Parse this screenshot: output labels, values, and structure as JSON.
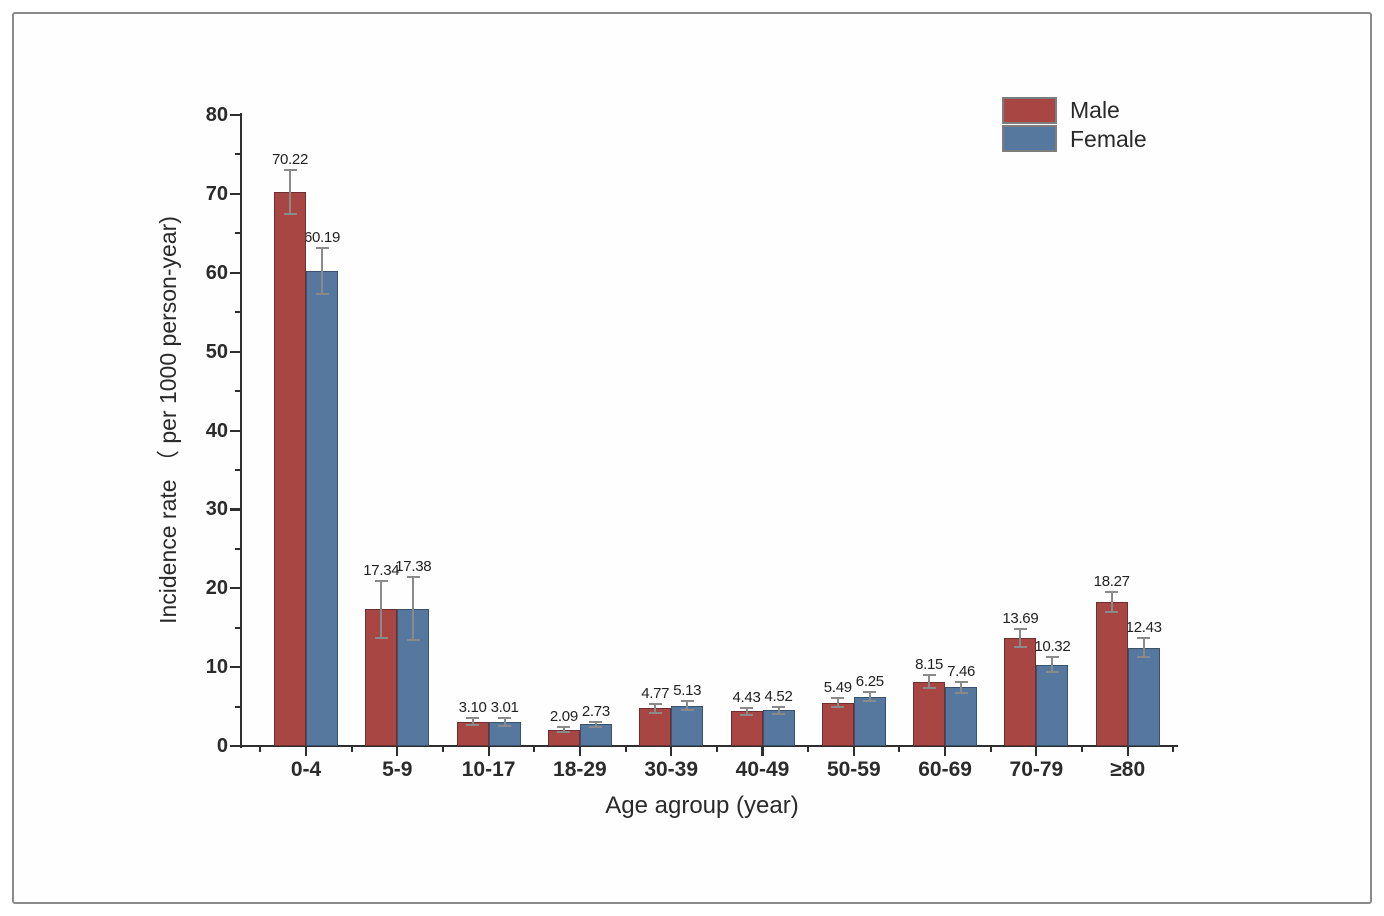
{
  "figure": {
    "background": "#ffffff",
    "frame_border_color": "#8a8a8a",
    "text_color": "#2a2a2a",
    "axis_color": "#2e2e2e",
    "error_bar_color": "#8a8a8a"
  },
  "chart_data": {
    "type": "bar",
    "title": "",
    "xlabel": "Age agroup (year)",
    "ylabel": "Incidence rate （ per 1000 person-year)",
    "categories": [
      "0-4",
      "5-9",
      "10-17",
      "18-29",
      "30-39",
      "40-49",
      "50-59",
      "60-69",
      "70-79",
      "≥80"
    ],
    "series": [
      {
        "name": "Male",
        "color": "#a84643",
        "edge_color": "#6e2f2e",
        "values": [
          70.22,
          17.34,
          3.1,
          2.09,
          4.77,
          4.43,
          5.49,
          8.15,
          13.69,
          18.27
        ],
        "labels": [
          "70.22",
          "17.34",
          "3.10",
          "2.09",
          "4.77",
          "4.43",
          "5.49",
          "8.15",
          "13.69",
          "18.27"
        ],
        "errors": [
          2.8,
          3.6,
          0.5,
          0.35,
          0.6,
          0.45,
          0.55,
          0.8,
          1.1,
          1.3
        ]
      },
      {
        "name": "Female",
        "color": "#56789f",
        "edge_color": "#39536f",
        "values": [
          60.19,
          17.38,
          3.01,
          2.73,
          5.13,
          4.52,
          6.25,
          7.46,
          10.32,
          12.43
        ],
        "labels": [
          "60.19",
          "17.38",
          "3.01",
          "2.73",
          "5.13",
          "4.52",
          "6.25",
          "7.46",
          "10.32",
          "12.43"
        ],
        "errors": [
          2.9,
          4.0,
          0.5,
          0.35,
          0.6,
          0.45,
          0.6,
          0.7,
          1.0,
          1.2
        ]
      }
    ],
    "y_axis": {
      "min": 0,
      "max": 80,
      "tick_step": 10,
      "minor_step": 5,
      "tick_labels": [
        "0",
        "10",
        "20",
        "30",
        "40",
        "50",
        "60",
        "70",
        "80"
      ]
    },
    "x_axis": {
      "tick_labels": [
        "0-4",
        "5-9",
        "10-17",
        "18-29",
        "30-39",
        "40-49",
        "50-59",
        "60-69",
        "70-79",
        "≥80"
      ]
    },
    "legend": {
      "position": "top-right",
      "entries": [
        "Male",
        "Female"
      ]
    },
    "grid": false,
    "error_bars": true
  }
}
